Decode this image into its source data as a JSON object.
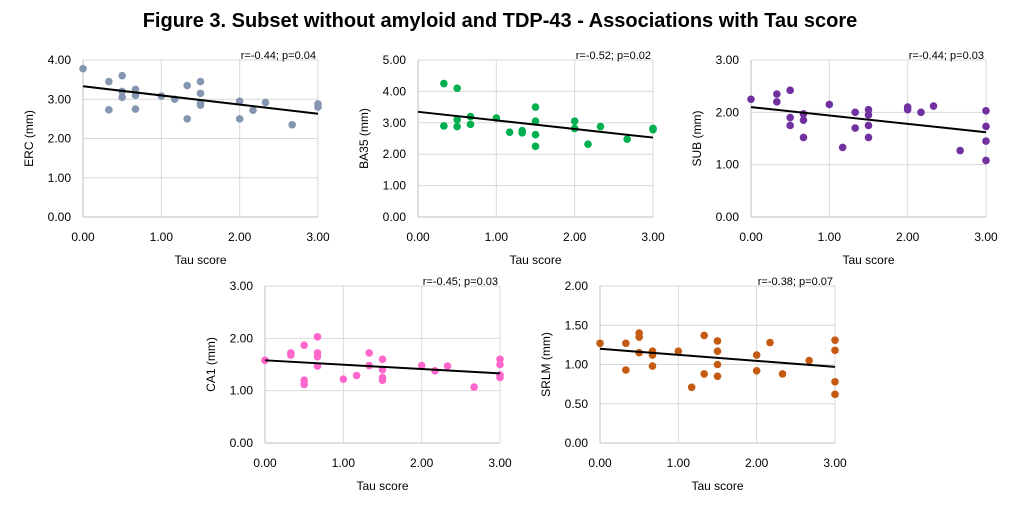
{
  "title": "Figure 3. Subset without amyloid and TDP-43 - Associations with Tau score",
  "chart_data": [
    {
      "type": "scatter",
      "id": "erc",
      "ylabel": "ERC (mm)",
      "xlabel": "Tau score",
      "annotation": "r=-0.44; p=0.04",
      "color": "#8496B0",
      "xlim": [
        0,
        3
      ],
      "ylim": [
        0,
        4
      ],
      "xticks": [
        "0.00",
        "1.00",
        "2.00",
        "3.00"
      ],
      "yticks": [
        "0.00",
        "1.00",
        "2.00",
        "3.00",
        "4.00"
      ],
      "trend": [
        [
          0,
          3.33
        ],
        [
          3,
          2.63
        ]
      ],
      "x": [
        0,
        0.33,
        0.33,
        0.5,
        0.5,
        0.5,
        0.67,
        0.67,
        0.67,
        1.0,
        1.17,
        1.33,
        1.33,
        1.5,
        1.5,
        1.5,
        1.5,
        2.0,
        2.0,
        2.17,
        2.33,
        2.67,
        3.0,
        3.0
      ],
      "y": [
        3.78,
        3.45,
        2.73,
        3.6,
        3.2,
        3.05,
        3.25,
        3.1,
        2.75,
        3.08,
        3.0,
        3.35,
        2.5,
        3.45,
        3.15,
        2.9,
        2.85,
        2.95,
        2.5,
        2.72,
        2.92,
        2.35,
        2.88,
        2.8
      ]
    },
    {
      "type": "scatter",
      "id": "ba35",
      "ylabel": "BA35 (mm)",
      "xlabel": "Tau score",
      "annotation": "r=-0.52; p=0.02",
      "color": "#00B050",
      "xlim": [
        0,
        3
      ],
      "ylim": [
        0,
        5
      ],
      "xticks": [
        "0.00",
        "1.00",
        "2.00",
        "3.00"
      ],
      "yticks": [
        "0.00",
        "1.00",
        "2.00",
        "3.00",
        "4.00",
        "5.00"
      ],
      "trend": [
        [
          0,
          3.35
        ],
        [
          3,
          2.53
        ]
      ],
      "x": [
        0.33,
        0.33,
        0.5,
        0.5,
        0.5,
        0.67,
        0.67,
        1.0,
        1.17,
        1.33,
        1.33,
        1.5,
        1.5,
        1.5,
        1.5,
        2.0,
        2.0,
        2.17,
        2.33,
        2.67,
        3.0,
        3.0
      ],
      "y": [
        4.25,
        2.9,
        4.1,
        3.1,
        2.88,
        3.2,
        2.95,
        3.15,
        2.7,
        2.75,
        2.68,
        3.5,
        3.05,
        2.62,
        2.25,
        3.05,
        2.82,
        2.32,
        2.88,
        2.48,
        2.82,
        2.78
      ]
    },
    {
      "type": "scatter",
      "id": "sub",
      "ylabel": "SUB (mm)",
      "xlabel": "Tau score",
      "annotation": "r=-0.44; p=0.03",
      "color": "#7030A0",
      "xlim": [
        0,
        3
      ],
      "ylim": [
        0,
        3
      ],
      "xticks": [
        "0.00",
        "1.00",
        "2.00",
        "3.00"
      ],
      "yticks": [
        "0.00",
        "1.00",
        "2.00",
        "3.00"
      ],
      "trend": [
        [
          0,
          2.1
        ],
        [
          3,
          1.62
        ]
      ],
      "x": [
        0,
        0.33,
        0.33,
        0.5,
        0.5,
        0.5,
        0.67,
        0.67,
        0.67,
        1.0,
        1.17,
        1.33,
        1.33,
        1.5,
        1.5,
        1.5,
        1.5,
        2.0,
        2.0,
        2.17,
        2.33,
        2.67,
        3.0,
        3.0,
        3.0,
        3.0
      ],
      "y": [
        2.25,
        2.35,
        2.2,
        2.42,
        1.9,
        1.75,
        1.97,
        1.85,
        1.52,
        2.15,
        1.33,
        2.0,
        1.7,
        2.05,
        1.95,
        1.75,
        1.52,
        2.1,
        2.05,
        2.0,
        2.12,
        1.27,
        2.03,
        1.73,
        1.45,
        1.08
      ]
    },
    {
      "type": "scatter",
      "id": "ca1",
      "ylabel": "CA1 (mm)",
      "xlabel": "Tau score",
      "annotation": "r=-0.45; p=0.03",
      "color": "#FF66CC",
      "xlim": [
        0,
        3
      ],
      "ylim": [
        0,
        3
      ],
      "xticks": [
        "0.00",
        "1.00",
        "2.00",
        "3.00"
      ],
      "yticks": [
        "0.00",
        "1.00",
        "2.00",
        "3.00"
      ],
      "trend": [
        [
          0,
          1.58
        ],
        [
          3,
          1.33
        ]
      ],
      "x": [
        0,
        0.33,
        0.33,
        0.5,
        0.5,
        0.5,
        0.67,
        0.67,
        0.67,
        0.67,
        1.0,
        1.17,
        1.33,
        1.33,
        1.5,
        1.5,
        1.5,
        1.5,
        2.0,
        2.17,
        2.33,
        2.67,
        3.0,
        3.0,
        3.0,
        3.0
      ],
      "y": [
        1.58,
        1.72,
        1.68,
        1.87,
        1.2,
        1.12,
        2.03,
        1.72,
        1.65,
        1.47,
        1.22,
        1.29,
        1.72,
        1.48,
        1.6,
        1.4,
        1.25,
        1.2,
        1.48,
        1.38,
        1.47,
        1.07,
        1.6,
        1.5,
        1.3,
        1.25
      ]
    },
    {
      "type": "scatter",
      "id": "srlm",
      "ylabel": "SRLM (mm)",
      "xlabel": "Tau score",
      "annotation": "r=-0.38; p=0.07",
      "color": "#C55A11",
      "xlim": [
        0,
        3
      ],
      "ylim": [
        0,
        2
      ],
      "xticks": [
        "0.00",
        "1.00",
        "2.00",
        "3.00"
      ],
      "yticks": [
        "0.00",
        "0.50",
        "1.00",
        "1.50",
        "2.00"
      ],
      "trend": [
        [
          0,
          1.2
        ],
        [
          3,
          0.97
        ]
      ],
      "x": [
        0,
        0.33,
        0.33,
        0.5,
        0.5,
        0.5,
        0.67,
        0.67,
        0.67,
        1.0,
        1.17,
        1.33,
        1.33,
        1.5,
        1.5,
        1.5,
        1.5,
        2.0,
        2.0,
        2.17,
        2.33,
        2.67,
        3.0,
        3.0,
        3.0,
        3.0
      ],
      "y": [
        1.27,
        1.27,
        0.93,
        1.4,
        1.35,
        1.15,
        1.17,
        1.12,
        0.98,
        1.17,
        0.71,
        1.37,
        0.88,
        1.3,
        1.17,
        1.0,
        0.85,
        1.12,
        0.92,
        1.28,
        0.88,
        1.05,
        1.31,
        1.18,
        0.78,
        0.62
      ]
    }
  ]
}
